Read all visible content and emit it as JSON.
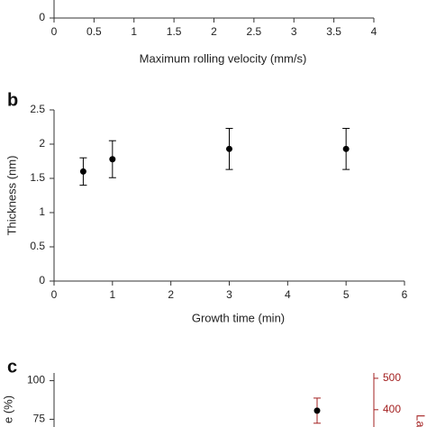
{
  "chart_data": [
    {
      "type": "scatter",
      "xlabel": "Maximum rolling velocity (mm/s)",
      "xlim": [
        0,
        4
      ],
      "xticks": [
        0,
        0.5,
        1,
        1.5,
        2,
        2.5,
        3,
        3.5,
        4
      ],
      "yticks": [
        0
      ]
    },
    {
      "type": "scatter",
      "panel_label": "b",
      "xlabel": "Growth time (min)",
      "ylabel": "Thickness (nm)",
      "xlim": [
        0,
        6
      ],
      "xticks": [
        0,
        1,
        2,
        3,
        4,
        5,
        6
      ],
      "ylim": [
        0,
        2.5
      ],
      "yticks": [
        0,
        0.5,
        1,
        1.5,
        2,
        2.5
      ],
      "series": [
        {
          "color": "#000000",
          "x": [
            0.5,
            1,
            3,
            5
          ],
          "values": [
            1.6,
            1.78,
            1.93,
            1.93
          ],
          "errors": [
            0.2,
            0.27,
            0.3,
            0.3
          ]
        }
      ]
    },
    {
      "type": "scatter",
      "panel_label": "c",
      "ylabel": "e (%)",
      "y2label": "Lat",
      "ylim": [
        70,
        105
      ],
      "yticks": [
        75,
        100
      ],
      "y2lim": [
        345,
        517
      ],
      "y2ticks": [
        400,
        500
      ],
      "y2color": "#a32020",
      "categories": [
        null
      ],
      "series": [
        {
          "color": "#000000",
          "error_color": "#a32020",
          "axis": "y2",
          "values": [
            397
          ],
          "errors": [
            40
          ]
        }
      ]
    }
  ]
}
